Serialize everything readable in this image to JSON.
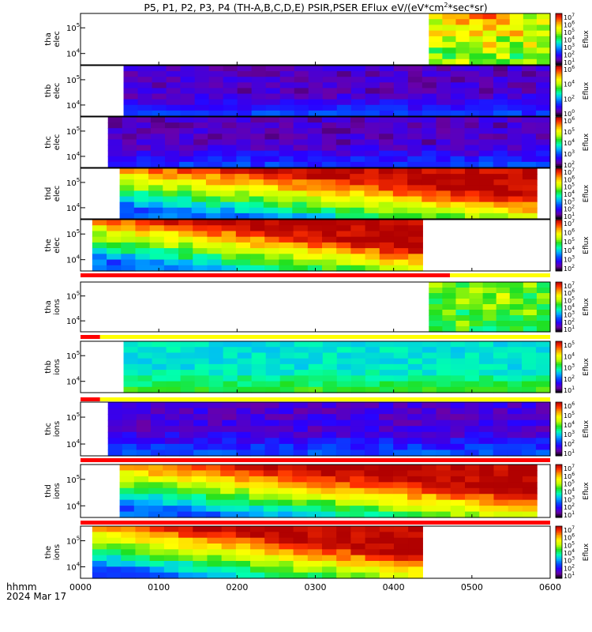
{
  "chart_data": {
    "type": "heatmap",
    "title": "P5, P1, P2, P3, P4 (TH-A,B,C,D,E) PSIR,PSER EFlux eV/(eV*cm",
    "title_sup": "2",
    "title_tail": "*sec*sr)",
    "xaxis": {
      "label_line1": "hhmm",
      "label_line2": "2024 Mar 17",
      "ticks": [
        "0000",
        "0100",
        "0200",
        "0300",
        "0400",
        "0500",
        "0600"
      ],
      "range_hours": [
        0,
        6
      ]
    },
    "colorbar_label": "Eflux",
    "colorbar_colors": [
      "#000000",
      "#6a00a8",
      "#2a00ff",
      "#0050ff",
      "#00b4ff",
      "#00ffb0",
      "#20e020",
      "#c8ff00",
      "#ffff00",
      "#ffa000",
      "#ff3000",
      "#b00000"
    ],
    "panels": [
      {
        "name": "tha-elec",
        "ylabel_top": "tha",
        "ylabel_bottom": "elec",
        "yticks": [
          "10",
          "10"
        ],
        "ytick_exps": [
          "5",
          "4"
        ],
        "data_start_hr": 4.45,
        "data_end_hr": 6.0,
        "hot_spot": [
          0.5,
          0.18
        ],
        "grad": 0.7,
        "base_level": 0.8,
        "texture": 0.14,
        "shape": "blob",
        "cbar_ticks": [
          "10",
          "10",
          "10",
          "10",
          "10",
          "10",
          "10"
        ],
        "cbar_exps": [
          "7",
          "6",
          "5",
          "4",
          "3",
          "2",
          "1"
        ]
      },
      {
        "name": "thb-elec",
        "ylabel_top": "thb",
        "ylabel_bottom": "elec",
        "yticks": [
          "10",
          "10"
        ],
        "ytick_exps": [
          "5",
          "4"
        ],
        "data_start_hr": 0.55,
        "data_end_hr": 6.0,
        "base_level": 0.12,
        "texture": 0.05,
        "shape": "flatband",
        "cbar_ticks": [
          "10",
          "10",
          "10",
          "10"
        ],
        "cbar_exps": [
          "6",
          "4",
          "2",
          "0"
        ]
      },
      {
        "name": "thc-elec",
        "ylabel_top": "thc",
        "ylabel_bottom": "elec",
        "yticks": [
          "10",
          "10"
        ],
        "ytick_exps": [
          "5",
          "4"
        ],
        "data_start_hr": 0.35,
        "data_end_hr": 6.0,
        "base_level": 0.12,
        "texture": 0.05,
        "shape": "flatband",
        "cbar_ticks": [
          "10",
          "10",
          "10",
          "10",
          "10"
        ],
        "cbar_exps": [
          "6",
          "5",
          "4",
          "3",
          "2"
        ]
      },
      {
        "name": "thd-elec",
        "ylabel_top": "thd",
        "ylabel_bottom": "elec",
        "yticks": [
          "10",
          "10"
        ],
        "ytick_exps": [
          "5",
          "4"
        ],
        "data_start_hr": 0.5,
        "data_end_hr": 5.83,
        "base_level": 0.55,
        "texture": 0.06,
        "shape": "ramp",
        "cbar_ticks": [
          "10",
          "10",
          "10",
          "10",
          "10",
          "10",
          "10"
        ],
        "cbar_exps": [
          "7",
          "6",
          "5",
          "4",
          "3",
          "2",
          "1"
        ]
      },
      {
        "name": "the-elec",
        "ylabel_top": "the",
        "ylabel_bottom": "elec",
        "yticks": [
          "10",
          "10"
        ],
        "ytick_exps": [
          "5",
          "4"
        ],
        "data_start_hr": 0.15,
        "data_end_hr": 4.37,
        "base_level": 0.6,
        "texture": 0.06,
        "shape": "ramp",
        "cbar_ticks": [
          "10",
          "10",
          "10",
          "10",
          "10",
          "10"
        ],
        "cbar_exps": [
          "7",
          "6",
          "5",
          "4",
          "3",
          "2"
        ]
      },
      {
        "name": "tha-ions",
        "ylabel_top": "tha",
        "ylabel_bottom": "ions",
        "yticks": [
          "10",
          "10"
        ],
        "ytick_exps": [
          "5",
          "4"
        ],
        "data_start_hr": 4.45,
        "data_end_hr": 6.0,
        "hot_spot": [
          0.5,
          0.18
        ],
        "grad": 0.3,
        "base_level": 0.62,
        "texture": 0.06,
        "shape": "blob",
        "cbar_ticks": [
          "10",
          "10",
          "10",
          "10",
          "10",
          "10",
          "10"
        ],
        "cbar_exps": [
          "7",
          "6",
          "5",
          "4",
          "3",
          "2",
          "1"
        ]
      },
      {
        "name": "thb-ions",
        "ylabel_top": "thb",
        "ylabel_bottom": "ions",
        "yticks": [
          "10",
          "10"
        ],
        "ytick_exps": [
          "5",
          "4"
        ],
        "data_start_hr": 0.55,
        "data_end_hr": 6.0,
        "base_level": 0.42,
        "texture": 0.04,
        "shape": "flatband",
        "cbar_ticks": [
          "10",
          "10",
          "10",
          "10",
          "10"
        ],
        "cbar_exps": [
          "5",
          "4",
          "3",
          "2",
          "1"
        ]
      },
      {
        "name": "thc-ions",
        "ylabel_top": "thc",
        "ylabel_bottom": "ions",
        "yticks": [
          "10",
          "10"
        ],
        "ytick_exps": [
          "5",
          "4"
        ],
        "data_start_hr": 0.35,
        "data_end_hr": 6.0,
        "base_level": 0.14,
        "texture": 0.05,
        "shape": "flatband",
        "cbar_ticks": [
          "10",
          "10",
          "10",
          "10",
          "10",
          "10"
        ],
        "cbar_exps": [
          "6",
          "5",
          "4",
          "3",
          "2",
          "1"
        ]
      },
      {
        "name": "thd-ions",
        "ylabel_top": "thd",
        "ylabel_bottom": "ions",
        "yticks": [
          "10",
          "10"
        ],
        "ytick_exps": [
          "5",
          "4"
        ],
        "data_start_hr": 0.5,
        "data_end_hr": 5.83,
        "base_level": 0.5,
        "texture": 0.05,
        "shape": "ramp",
        "cbar_ticks": [
          "10",
          "10",
          "10",
          "10",
          "10",
          "10",
          "10"
        ],
        "cbar_exps": [
          "7",
          "6",
          "5",
          "4",
          "3",
          "2",
          "1"
        ]
      },
      {
        "name": "the-ions",
        "ylabel_top": "the",
        "ylabel_bottom": "ions",
        "yticks": [
          "10",
          "10"
        ],
        "ytick_exps": [
          "5",
          "4"
        ],
        "data_start_hr": 0.15,
        "data_end_hr": 4.37,
        "base_level": 0.52,
        "texture": 0.05,
        "shape": "ramp",
        "cbar_ticks": [
          "10",
          "10",
          "10",
          "10",
          "10",
          "10",
          "10"
        ],
        "cbar_exps": [
          "7",
          "6",
          "5",
          "4",
          "3",
          "2",
          "1"
        ]
      }
    ],
    "mode_bars": [
      {
        "name": "mode-bar-1",
        "segments": [
          {
            "from_hr": 0.0,
            "to_hr": 4.72,
            "color": "#ff0000"
          },
          {
            "from_hr": 4.72,
            "to_hr": 6.0,
            "color": "#ffff00"
          }
        ]
      },
      {
        "name": "mode-bar-2",
        "segments": [
          {
            "from_hr": 0.0,
            "to_hr": 0.25,
            "color": "#ff0000"
          },
          {
            "from_hr": 0.25,
            "to_hr": 6.0,
            "color": "#ffff00"
          }
        ]
      },
      {
        "name": "mode-bar-3",
        "segments": [
          {
            "from_hr": 0.0,
            "to_hr": 0.25,
            "color": "#ff0000"
          },
          {
            "from_hr": 0.25,
            "to_hr": 6.0,
            "color": "#ffff00"
          }
        ]
      },
      {
        "name": "mode-bar-4",
        "segments": [
          {
            "from_hr": 0.0,
            "to_hr": 6.0,
            "color": "#ff0000"
          }
        ]
      },
      {
        "name": "mode-bar-5",
        "segments": [
          {
            "from_hr": 0.0,
            "to_hr": 6.0,
            "color": "#ff0000"
          }
        ]
      }
    ]
  }
}
